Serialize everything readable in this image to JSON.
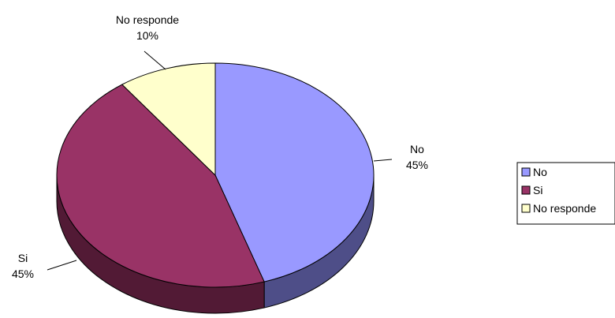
{
  "chart_data": {
    "type": "pie",
    "style": "3d",
    "legend_position": "right",
    "slices": [
      {
        "label": "No",
        "value": 45,
        "percent_label": "45%",
        "color": "#9999ff",
        "side_color": "#4e4e88"
      },
      {
        "label": "Si",
        "value": 45,
        "percent_label": "45%",
        "color": "#993366",
        "side_color": "#521a35"
      },
      {
        "label": "No responde",
        "value": 10,
        "percent_label": "10%",
        "color": "#ffffcc",
        "side_color": "#b3b38f"
      }
    ]
  }
}
